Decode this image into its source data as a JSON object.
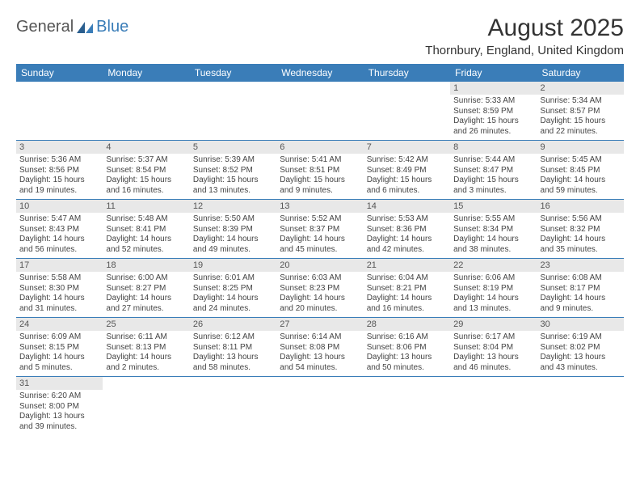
{
  "logo": {
    "text1": "General",
    "text2": "Blue"
  },
  "title": "August 2025",
  "location": "Thornbury, England, United Kingdom",
  "colors": {
    "header_bg": "#3a7db8",
    "header_fg": "#ffffff",
    "daynum_bg": "#e8e8e8",
    "border": "#3a7db8"
  },
  "day_headers": [
    "Sunday",
    "Monday",
    "Tuesday",
    "Wednesday",
    "Thursday",
    "Friday",
    "Saturday"
  ],
  "weeks": [
    [
      null,
      null,
      null,
      null,
      null,
      {
        "n": "1",
        "sr": "Sunrise: 5:33 AM",
        "ss": "Sunset: 8:59 PM",
        "dl": "Daylight: 15 hours and 26 minutes."
      },
      {
        "n": "2",
        "sr": "Sunrise: 5:34 AM",
        "ss": "Sunset: 8:57 PM",
        "dl": "Daylight: 15 hours and 22 minutes."
      }
    ],
    [
      {
        "n": "3",
        "sr": "Sunrise: 5:36 AM",
        "ss": "Sunset: 8:56 PM",
        "dl": "Daylight: 15 hours and 19 minutes."
      },
      {
        "n": "4",
        "sr": "Sunrise: 5:37 AM",
        "ss": "Sunset: 8:54 PM",
        "dl": "Daylight: 15 hours and 16 minutes."
      },
      {
        "n": "5",
        "sr": "Sunrise: 5:39 AM",
        "ss": "Sunset: 8:52 PM",
        "dl": "Daylight: 15 hours and 13 minutes."
      },
      {
        "n": "6",
        "sr": "Sunrise: 5:41 AM",
        "ss": "Sunset: 8:51 PM",
        "dl": "Daylight: 15 hours and 9 minutes."
      },
      {
        "n": "7",
        "sr": "Sunrise: 5:42 AM",
        "ss": "Sunset: 8:49 PM",
        "dl": "Daylight: 15 hours and 6 minutes."
      },
      {
        "n": "8",
        "sr": "Sunrise: 5:44 AM",
        "ss": "Sunset: 8:47 PM",
        "dl": "Daylight: 15 hours and 3 minutes."
      },
      {
        "n": "9",
        "sr": "Sunrise: 5:45 AM",
        "ss": "Sunset: 8:45 PM",
        "dl": "Daylight: 14 hours and 59 minutes."
      }
    ],
    [
      {
        "n": "10",
        "sr": "Sunrise: 5:47 AM",
        "ss": "Sunset: 8:43 PM",
        "dl": "Daylight: 14 hours and 56 minutes."
      },
      {
        "n": "11",
        "sr": "Sunrise: 5:48 AM",
        "ss": "Sunset: 8:41 PM",
        "dl": "Daylight: 14 hours and 52 minutes."
      },
      {
        "n": "12",
        "sr": "Sunrise: 5:50 AM",
        "ss": "Sunset: 8:39 PM",
        "dl": "Daylight: 14 hours and 49 minutes."
      },
      {
        "n": "13",
        "sr": "Sunrise: 5:52 AM",
        "ss": "Sunset: 8:37 PM",
        "dl": "Daylight: 14 hours and 45 minutes."
      },
      {
        "n": "14",
        "sr": "Sunrise: 5:53 AM",
        "ss": "Sunset: 8:36 PM",
        "dl": "Daylight: 14 hours and 42 minutes."
      },
      {
        "n": "15",
        "sr": "Sunrise: 5:55 AM",
        "ss": "Sunset: 8:34 PM",
        "dl": "Daylight: 14 hours and 38 minutes."
      },
      {
        "n": "16",
        "sr": "Sunrise: 5:56 AM",
        "ss": "Sunset: 8:32 PM",
        "dl": "Daylight: 14 hours and 35 minutes."
      }
    ],
    [
      {
        "n": "17",
        "sr": "Sunrise: 5:58 AM",
        "ss": "Sunset: 8:30 PM",
        "dl": "Daylight: 14 hours and 31 minutes."
      },
      {
        "n": "18",
        "sr": "Sunrise: 6:00 AM",
        "ss": "Sunset: 8:27 PM",
        "dl": "Daylight: 14 hours and 27 minutes."
      },
      {
        "n": "19",
        "sr": "Sunrise: 6:01 AM",
        "ss": "Sunset: 8:25 PM",
        "dl": "Daylight: 14 hours and 24 minutes."
      },
      {
        "n": "20",
        "sr": "Sunrise: 6:03 AM",
        "ss": "Sunset: 8:23 PM",
        "dl": "Daylight: 14 hours and 20 minutes."
      },
      {
        "n": "21",
        "sr": "Sunrise: 6:04 AM",
        "ss": "Sunset: 8:21 PM",
        "dl": "Daylight: 14 hours and 16 minutes."
      },
      {
        "n": "22",
        "sr": "Sunrise: 6:06 AM",
        "ss": "Sunset: 8:19 PM",
        "dl": "Daylight: 14 hours and 13 minutes."
      },
      {
        "n": "23",
        "sr": "Sunrise: 6:08 AM",
        "ss": "Sunset: 8:17 PM",
        "dl": "Daylight: 14 hours and 9 minutes."
      }
    ],
    [
      {
        "n": "24",
        "sr": "Sunrise: 6:09 AM",
        "ss": "Sunset: 8:15 PM",
        "dl": "Daylight: 14 hours and 5 minutes."
      },
      {
        "n": "25",
        "sr": "Sunrise: 6:11 AM",
        "ss": "Sunset: 8:13 PM",
        "dl": "Daylight: 14 hours and 2 minutes."
      },
      {
        "n": "26",
        "sr": "Sunrise: 6:12 AM",
        "ss": "Sunset: 8:11 PM",
        "dl": "Daylight: 13 hours and 58 minutes."
      },
      {
        "n": "27",
        "sr": "Sunrise: 6:14 AM",
        "ss": "Sunset: 8:08 PM",
        "dl": "Daylight: 13 hours and 54 minutes."
      },
      {
        "n": "28",
        "sr": "Sunrise: 6:16 AM",
        "ss": "Sunset: 8:06 PM",
        "dl": "Daylight: 13 hours and 50 minutes."
      },
      {
        "n": "29",
        "sr": "Sunrise: 6:17 AM",
        "ss": "Sunset: 8:04 PM",
        "dl": "Daylight: 13 hours and 46 minutes."
      },
      {
        "n": "30",
        "sr": "Sunrise: 6:19 AM",
        "ss": "Sunset: 8:02 PM",
        "dl": "Daylight: 13 hours and 43 minutes."
      }
    ],
    [
      {
        "n": "31",
        "sr": "Sunrise: 6:20 AM",
        "ss": "Sunset: 8:00 PM",
        "dl": "Daylight: 13 hours and 39 minutes."
      },
      null,
      null,
      null,
      null,
      null,
      null
    ]
  ]
}
